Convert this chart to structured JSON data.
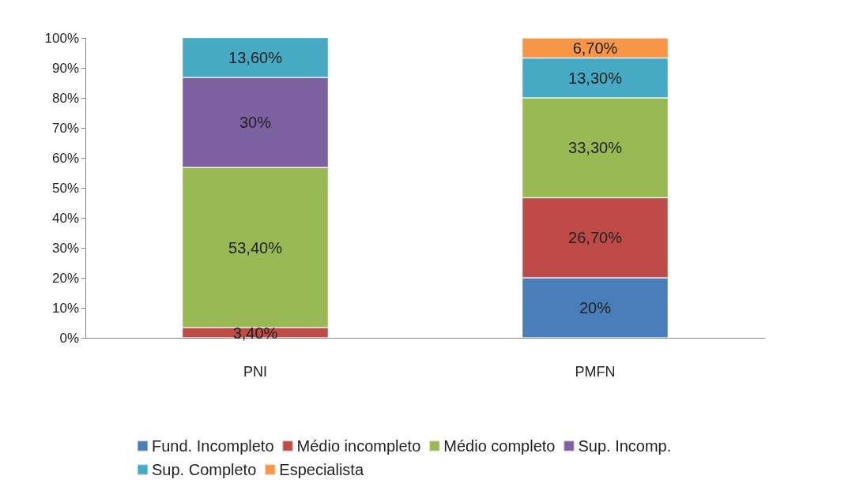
{
  "chart_data": {
    "type": "bar",
    "stacked": true,
    "categories": [
      "PNI",
      "PMFN"
    ],
    "series": [
      {
        "name": "Fund. Incompleto",
        "color": "#4a7ebb",
        "values": [
          null,
          20
        ],
        "value_labels": [
          null,
          "20%"
        ]
      },
      {
        "name": "Médio incompleto",
        "color": "#be4b48",
        "values": [
          3.4,
          26.7
        ],
        "value_labels": [
          "3,40%",
          "26,70%"
        ]
      },
      {
        "name": "Médio completo",
        "color": "#98b954",
        "values": [
          53.4,
          33.3
        ],
        "value_labels": [
          "53,40%",
          "33,30%"
        ]
      },
      {
        "name": "Sup. Incomp.",
        "color": "#7d60a0",
        "values": [
          30,
          null
        ],
        "value_labels": [
          "30%",
          null
        ]
      },
      {
        "name": "Sup. Completo",
        "color": "#46aac5",
        "values": [
          13.6,
          13.3
        ],
        "value_labels": [
          "13,60%",
          "13,30%"
        ]
      },
      {
        "name": "Especialista",
        "color": "#f79646",
        "values": [
          null,
          6.7
        ],
        "value_labels": [
          null,
          "6,70%"
        ]
      }
    ],
    "ylim": [
      0,
      100
    ],
    "yticks": [
      {
        "value": 0,
        "label": "0%"
      },
      {
        "value": 10,
        "label": "10%"
      },
      {
        "value": 20,
        "label": "20%"
      },
      {
        "value": 30,
        "label": "30%"
      },
      {
        "value": 40,
        "label": "40%"
      },
      {
        "value": 50,
        "label": "50%"
      },
      {
        "value": 60,
        "label": "60%"
      },
      {
        "value": 70,
        "label": "70%"
      },
      {
        "value": 80,
        "label": "80%"
      },
      {
        "value": 90,
        "label": "90%"
      },
      {
        "value": 100,
        "label": "100%"
      }
    ],
    "grid": false,
    "legend": "bottom"
  }
}
